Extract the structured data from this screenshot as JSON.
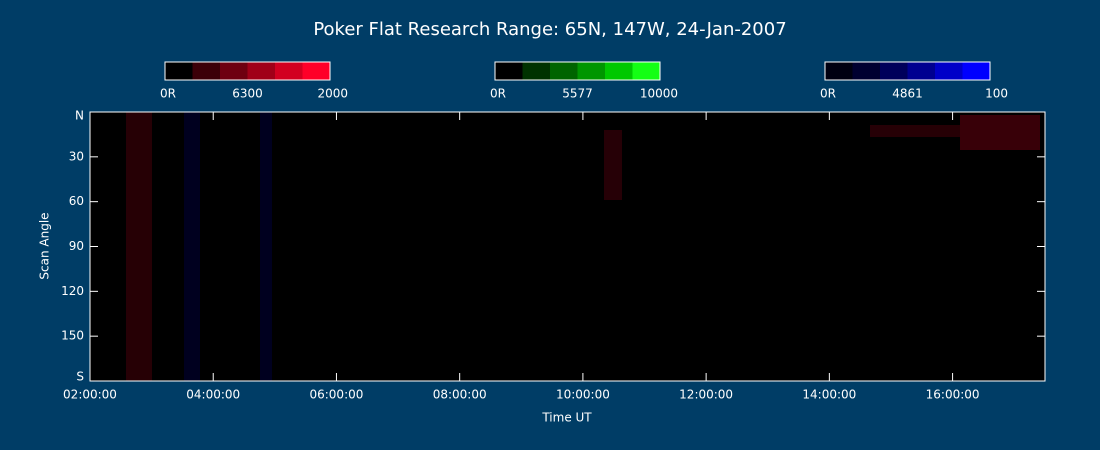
{
  "chart_data": {
    "type": "keogram",
    "title": "Poker Flat Research Range: 65N, 147W, 24-Jan-2007",
    "x_label": "Time UT",
    "y_label": "Scan Angle",
    "xlim": [
      2,
      17.5
    ],
    "xticks": [
      {
        "value": 2,
        "label": "02:00:00"
      },
      {
        "value": 4,
        "label": "04:00:00"
      },
      {
        "value": 6,
        "label": "06:00:00"
      },
      {
        "value": 8,
        "label": "08:00:00"
      },
      {
        "value": 10,
        "label": "10:00:00"
      },
      {
        "value": 12,
        "label": "12:00:00"
      },
      {
        "value": 14,
        "label": "14:00:00"
      },
      {
        "value": 16,
        "label": "16:00:00"
      }
    ],
    "ylim": [
      180,
      0
    ],
    "yticks": [
      {
        "value": 0,
        "label": "N"
      },
      30,
      60,
      90,
      120,
      150,
      {
        "value": 180,
        "label": "S"
      }
    ],
    "colorbars": [
      {
        "colors": [
          "#000000",
          "#3c0008",
          "#6e0010",
          "#a00018",
          "#d20020",
          "#ff0028"
        ],
        "labels": [
          "0R",
          "6300",
          "2000"
        ]
      },
      {
        "colors": [
          "#000000",
          "#003200",
          "#006400",
          "#009600",
          "#00c800",
          "#14ff14"
        ],
        "labels": [
          "0R",
          "5577",
          "10000"
        ]
      },
      {
        "colors": [
          "#000010",
          "#000030",
          "#00005a",
          "#000090",
          "#0000c8",
          "#0000ff"
        ],
        "labels": [
          "0R",
          "4861",
          "100"
        ]
      }
    ]
  }
}
